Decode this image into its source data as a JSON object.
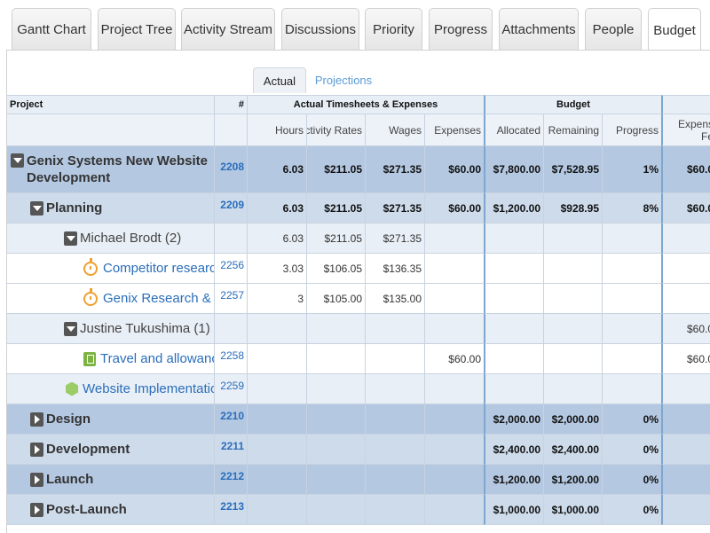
{
  "tabs": [
    {
      "label": "Gantt Chart"
    },
    {
      "label": "Project Tree"
    },
    {
      "label": "Activity Stream"
    },
    {
      "label": "Discussions"
    },
    {
      "label": "Priority"
    },
    {
      "label": "Progress"
    },
    {
      "label": "Attachments"
    },
    {
      "label": "People"
    },
    {
      "label": "Budget"
    }
  ],
  "subtabs": {
    "actual": "Actual",
    "projections": "Projections"
  },
  "header": {
    "project": "Project",
    "num": "#",
    "group_actual": "Actual Timesheets & Expenses",
    "group_budget": "Budget",
    "hours": "Hours",
    "activity_rates": "Activity Rates",
    "wages": "Wages",
    "expenses": "Expenses",
    "allocated": "Allocated",
    "remaining": "Remaining",
    "progress": "Progress",
    "expense_fee": "Expens Fe"
  },
  "rows": [
    {
      "name": "Genix Systems New Website Development",
      "id": "2208",
      "hours": "6.03",
      "rates": "$211.05",
      "wages": "$271.35",
      "expenses": "$60.00",
      "allocated": "$7,800.00",
      "remaining": "$7,528.95",
      "progress": "1%",
      "fee": "$60.0"
    },
    {
      "name": "Planning",
      "id": "2209",
      "hours": "6.03",
      "rates": "$211.05",
      "wages": "$271.35",
      "expenses": "$60.00",
      "allocated": "$1,200.00",
      "remaining": "$928.95",
      "progress": "8%",
      "fee": "$60.0"
    },
    {
      "name": "Michael Brodt (2)",
      "id": "",
      "hours": "6.03",
      "rates": "$211.05",
      "wages": "$271.35",
      "expenses": "",
      "allocated": "",
      "remaining": "",
      "progress": "",
      "fee": ""
    },
    {
      "name": "Competitor research",
      "id": "2256",
      "hours": "3.03",
      "rates": "$106.05",
      "wages": "$136.35",
      "expenses": "",
      "allocated": "",
      "remaining": "",
      "progress": "",
      "fee": ""
    },
    {
      "name": "Genix Research &",
      "id": "2257",
      "hours": "3",
      "rates": "$105.00",
      "wages": "$135.00",
      "expenses": "",
      "allocated": "",
      "remaining": "",
      "progress": "",
      "fee": ""
    },
    {
      "name": "Justine Tukushima (1)",
      "id": "",
      "hours": "",
      "rates": "",
      "wages": "",
      "expenses": "",
      "allocated": "",
      "remaining": "",
      "progress": "",
      "fee": "$60.0"
    },
    {
      "name": "Travel and allowance",
      "id": "2258",
      "hours": "",
      "rates": "",
      "wages": "",
      "expenses": "$60.00",
      "allocated": "",
      "remaining": "",
      "progress": "",
      "fee": "$60.0"
    },
    {
      "name": "Website Implementation",
      "id": "2259",
      "hours": "",
      "rates": "",
      "wages": "",
      "expenses": "",
      "allocated": "",
      "remaining": "",
      "progress": "",
      "fee": ""
    },
    {
      "name": "Design",
      "id": "2210",
      "hours": "",
      "rates": "",
      "wages": "",
      "expenses": "",
      "allocated": "$2,000.00",
      "remaining": "$2,000.00",
      "progress": "0%",
      "fee": ""
    },
    {
      "name": "Development",
      "id": "2211",
      "hours": "",
      "rates": "",
      "wages": "",
      "expenses": "",
      "allocated": "$2,400.00",
      "remaining": "$2,400.00",
      "progress": "0%",
      "fee": ""
    },
    {
      "name": "Launch",
      "id": "2212",
      "hours": "",
      "rates": "",
      "wages": "",
      "expenses": "",
      "allocated": "$1,200.00",
      "remaining": "$1,200.00",
      "progress": "0%",
      "fee": ""
    },
    {
      "name": "Post-Launch",
      "id": "2213",
      "hours": "",
      "rates": "",
      "wages": "",
      "expenses": "",
      "allocated": "$1,000.00",
      "remaining": "$1,000.00",
      "progress": "0%",
      "fee": ""
    }
  ]
}
